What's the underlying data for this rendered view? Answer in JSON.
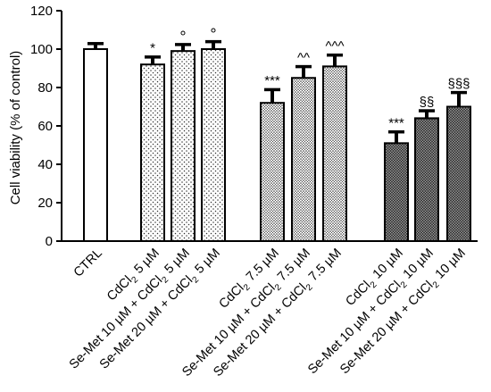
{
  "chart_data": {
    "type": "bar",
    "ylabel": "Cell viability (% of control)",
    "ylim": [
      0,
      120
    ],
    "yticks": [
      0,
      20,
      40,
      60,
      80,
      100,
      120
    ],
    "grid": false,
    "legend": "none",
    "bars": [
      {
        "label": "CTRL",
        "value": 100,
        "error": 3,
        "annotation": "",
        "fill": "white"
      },
      {
        "label": "CdCl2 5 µM",
        "value": 92,
        "error": 4,
        "annotation": "*",
        "fill": "sparse-dots"
      },
      {
        "label": "Se-Met 10 µM + CdCl2 5 µM",
        "value": 99,
        "error": 3.5,
        "annotation": "°",
        "fill": "sparse-dots"
      },
      {
        "label": "Se-Met 20 µM + CdCl2 5 µM",
        "value": 100,
        "error": 4,
        "annotation": "°",
        "fill": "sparse-dots"
      },
      {
        "label": "CdCl2 7.5 µM",
        "value": 72,
        "error": 7,
        "annotation": "***",
        "fill": "medium-dots"
      },
      {
        "label": "Se-Met 10 µM + CdCl2 7.5 µM",
        "value": 85,
        "error": 6,
        "annotation": "^^",
        "fill": "medium-dots"
      },
      {
        "label": "Se-Met 20 µM + CdCl2 7.5 µM",
        "value": 91,
        "error": 6,
        "annotation": "^^^",
        "fill": "medium-dots"
      },
      {
        "label": "CdCl2 10 µM",
        "value": 51,
        "error": 6,
        "annotation": "***",
        "fill": "dense-dots"
      },
      {
        "label": "Se-Met 10 µM + CdCl2 10 µM",
        "value": 64,
        "error": 4,
        "annotation": "§§",
        "fill": "dense-dots"
      },
      {
        "label": "Se-Met 20 µM + CdCl2 10 µM",
        "value": 70,
        "error": 7.5,
        "annotation": "§§§",
        "fill": "dense-dots"
      }
    ]
  }
}
